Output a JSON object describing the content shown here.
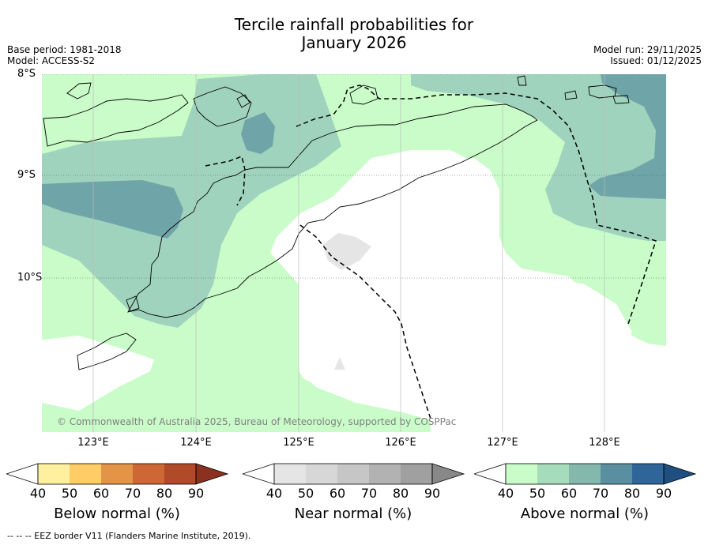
{
  "header": {
    "title_line1": "Tercile rainfall probabilities for",
    "title_line2": "January 2026",
    "base_period": "Base period: 1981-2018",
    "model": "Model: ACCESS-S2",
    "model_run": "Model run: 29/11/2025",
    "issued": "Issued: 01/12/2025"
  },
  "map": {
    "lat_labels": [
      "8°S",
      "9°S",
      "10°S"
    ],
    "lon_labels": [
      "123°E",
      "124°E",
      "125°E",
      "126°E",
      "127°E",
      "128°E"
    ],
    "credit": "© Commonwealth of Australia 2025, Bureau of Meteorology, supported by COSPPac",
    "colors": {
      "above_40_50": "#c9fcc9",
      "above_50_60": "#a0d3bd",
      "above_60_70": "#6fa5a8",
      "near_40_50": "#e5e5e5",
      "ocean_normal": "#ffffff"
    }
  },
  "colorbars": [
    {
      "label": "Below normal (%)",
      "ticks": [
        "40",
        "50",
        "60",
        "70",
        "80",
        "90"
      ],
      "colors": [
        "#ffffff",
        "#fff0a0",
        "#ffcc66",
        "#e39446",
        "#cd6735",
        "#b04a28",
        "#8c3120"
      ]
    },
    {
      "label": "Near normal (%)",
      "ticks": [
        "40",
        "50",
        "60",
        "70",
        "80",
        "90"
      ],
      "colors": [
        "#ffffff",
        "#e5e5e5",
        "#d7d7d7",
        "#c6c6c6",
        "#b2b2b2",
        "#a0a0a0",
        "#888888"
      ]
    },
    {
      "label": "Above normal (%)",
      "ticks": [
        "40",
        "50",
        "60",
        "70",
        "80",
        "90"
      ],
      "colors": [
        "#ffffff",
        "#c9fcc9",
        "#a6dbbb",
        "#84b8ac",
        "#5a8fa1",
        "#2f6599",
        "#1e4f80"
      ]
    }
  ],
  "footer": {
    "eez_note": "--  --  -- EEZ border V11 (Flanders Marine Institute, 2019)."
  }
}
